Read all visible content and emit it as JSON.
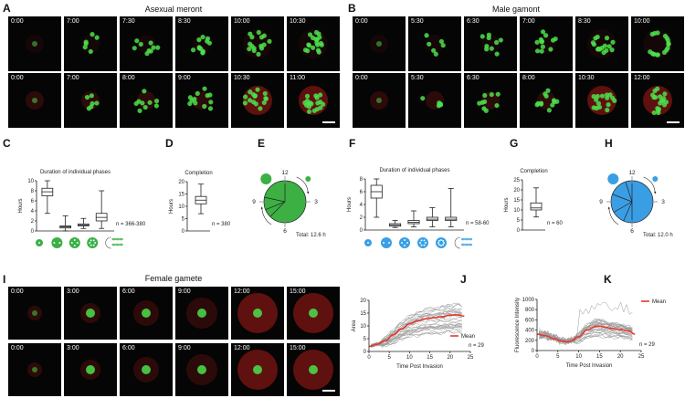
{
  "panels": {
    "A": {
      "label": "A",
      "title": "Asexual meront",
      "rows": [
        [
          "0:00",
          "7:00",
          "7:30",
          "8:30",
          "10:00",
          "10:30"
        ],
        [
          "0:00",
          "7:00",
          "8:00",
          "9:00",
          "10:30",
          "11:00"
        ]
      ]
    },
    "B": {
      "label": "B",
      "title": "Male gamont",
      "rows": [
        [
          "0:00",
          "5:30",
          "6:30",
          "7:00",
          "8:30",
          "10:00"
        ],
        [
          "0:00",
          "5:30",
          "6:30",
          "8:00",
          "10:30",
          "12:00"
        ]
      ]
    },
    "I": {
      "label": "I",
      "title": "Female gamete",
      "rows": [
        [
          "0:00",
          "3:00",
          "6:00",
          "9:00",
          "12:00",
          "15:00"
        ],
        [
          "0:00",
          "3:00",
          "6:00",
          "9:00",
          "12:00",
          "15:00"
        ]
      ]
    },
    "C": {
      "label": "C"
    },
    "D": {
      "label": "D"
    },
    "E": {
      "label": "E"
    },
    "F": {
      "label": "F"
    },
    "G": {
      "label": "G"
    },
    "H": {
      "label": "H"
    },
    "J": {
      "label": "J"
    },
    "K": {
      "label": "K"
    }
  },
  "colors": {
    "green": "#3cb043",
    "blue": "#3a9ee4",
    "mean": "#e8372c",
    "traces": "#9a9a9a"
  },
  "chart_data": [
    {
      "id": "C",
      "type": "box",
      "title": "Duration of individual phases",
      "ylabel": "Hours",
      "ylim": [
        0,
        10
      ],
      "yticks": [
        0,
        2,
        4,
        6,
        8,
        10
      ],
      "boxes": [
        [
          3.5,
          7,
          7.8,
          8.5,
          10
        ],
        [
          0,
          0.6,
          0.8,
          1,
          3
        ],
        [
          0.5,
          1,
          1.2,
          1.4,
          2.5
        ],
        [
          0.5,
          2,
          2.7,
          3.5,
          8
        ]
      ],
      "annotation": "n = 366-380",
      "stage_icons": 5
    },
    {
      "id": "D",
      "type": "box",
      "title": "Completion",
      "ylabel": "Hours",
      "ylim": [
        0,
        20
      ],
      "yticks": [
        0,
        5,
        10,
        15,
        20
      ],
      "boxes": [
        [
          7,
          11,
          12.5,
          14,
          19
        ]
      ],
      "annotation": "n = 380"
    },
    {
      "id": "E",
      "type": "pie",
      "slices": [
        7.8,
        0.8,
        1.2,
        2.7
      ],
      "clock_labels": [
        "12",
        "3",
        "6",
        "9"
      ],
      "annotation": "Total: 12.6 h",
      "color": "#3cb043"
    },
    {
      "id": "F",
      "type": "box",
      "title": "Duration of individual phases",
      "ylabel": "Hours",
      "ylim": [
        0,
        8
      ],
      "yticks": [
        0,
        2,
        4,
        6,
        8
      ],
      "boxes": [
        [
          2,
          5,
          6,
          7,
          8
        ],
        [
          0.4,
          0.6,
          0.8,
          1,
          1.5
        ],
        [
          0.5,
          1,
          1.2,
          1.5,
          3
        ],
        [
          0.5,
          1.5,
          1.7,
          2,
          3.5
        ],
        [
          0.5,
          1.5,
          1.7,
          2,
          6.5
        ]
      ],
      "annotation": "n = 58-60",
      "stage_icons": 6
    },
    {
      "id": "G",
      "type": "box",
      "title": "Completion",
      "ylabel": "Hours",
      "ylim": [
        0,
        25
      ],
      "yticks": [
        0,
        5,
        10,
        15,
        20,
        25
      ],
      "boxes": [
        [
          6.5,
          10,
          11,
          13.5,
          21
        ]
      ],
      "annotation": "n = 60"
    },
    {
      "id": "H",
      "type": "pie",
      "slices": [
        6,
        0.8,
        1.2,
        1.7,
        1.7,
        0.6
      ],
      "clock_labels": [
        "12",
        "3",
        "6",
        "9"
      ],
      "annotation": "Total: 12.0 h",
      "color": "#3a9ee4"
    },
    {
      "id": "J",
      "type": "line",
      "xlabel": "Time Post Invasion",
      "ylabel": "Area",
      "xlim": [
        0,
        25
      ],
      "ylim": [
        0,
        20
      ],
      "xticks": [
        0,
        5,
        10,
        15,
        20,
        25
      ],
      "yticks": [
        0,
        5,
        10,
        15,
        20
      ],
      "legend": "Mean",
      "annotation": "n = 29",
      "mean": {
        "x": [
          0,
          2,
          4,
          6,
          8,
          10,
          12,
          14,
          16,
          18,
          20,
          22,
          23.5
        ],
        "y": [
          2,
          2.8,
          4.2,
          6.5,
          8.8,
          10.8,
          12,
          12.8,
          13.2,
          13.6,
          14.2,
          14.3,
          13.8
        ]
      }
    },
    {
      "id": "K",
      "type": "line",
      "xlabel": "Time Post Invasion",
      "ylabel": "Fluorescence Intensity",
      "xlim": [
        0,
        25
      ],
      "ylim": [
        0,
        1000
      ],
      "xticks": [
        0,
        5,
        10,
        15,
        20,
        25
      ],
      "yticks": [
        0,
        200,
        400,
        600,
        800,
        1000
      ],
      "legend": "Mean",
      "annotation": "n = 29",
      "mean": {
        "x": [
          0,
          2,
          4,
          6,
          7,
          8,
          10,
          12,
          14,
          15,
          16,
          18,
          20,
          22,
          23.5
        ],
        "y": [
          320,
          290,
          230,
          185,
          170,
          180,
          270,
          400,
          470,
          480,
          460,
          430,
          410,
          380,
          320
        ]
      }
    }
  ]
}
